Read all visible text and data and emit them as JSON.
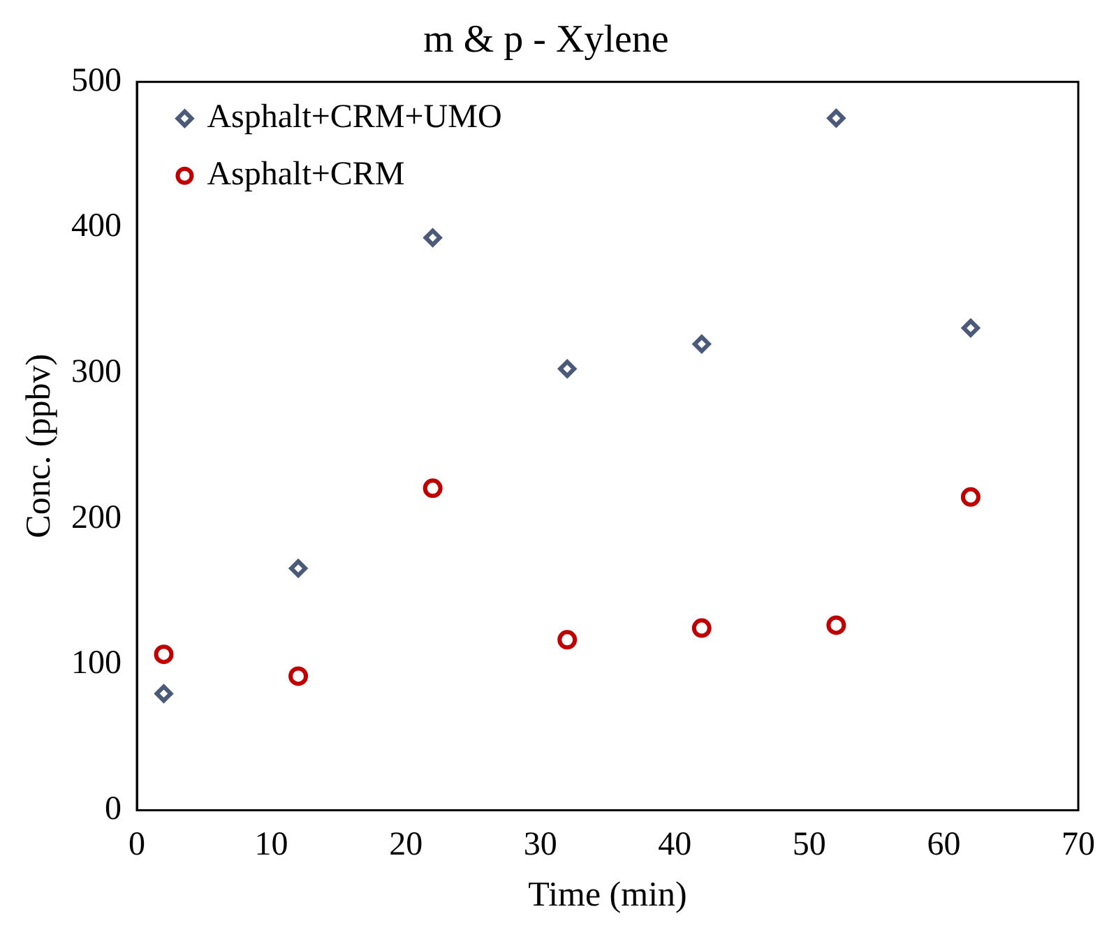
{
  "chart_data": {
    "type": "scatter",
    "title": "m & p - Xylene",
    "xlabel": "Time (min)",
    "ylabel": "Conc. (ppbv)",
    "x": [
      2,
      12,
      22,
      32,
      42,
      52,
      62
    ],
    "series": [
      {
        "name": "Asphalt+CRM+UMO",
        "color": "#4a5a78",
        "marker": "diamond",
        "values": [
          80,
          166,
          393,
          303,
          320,
          475,
          331
        ]
      },
      {
        "name": "Asphalt+CRM",
        "color": "#c00000",
        "marker": "circle",
        "values": [
          107,
          92,
          221,
          117,
          125,
          127,
          215
        ]
      }
    ],
    "xlim": [
      0,
      70
    ],
    "xticks": [
      0,
      10,
      20,
      30,
      40,
      50,
      60,
      70
    ],
    "ylim": [
      0,
      500
    ],
    "yticks": [
      0,
      100,
      200,
      300,
      400,
      500
    ],
    "grid": false,
    "legend": "top left"
  }
}
